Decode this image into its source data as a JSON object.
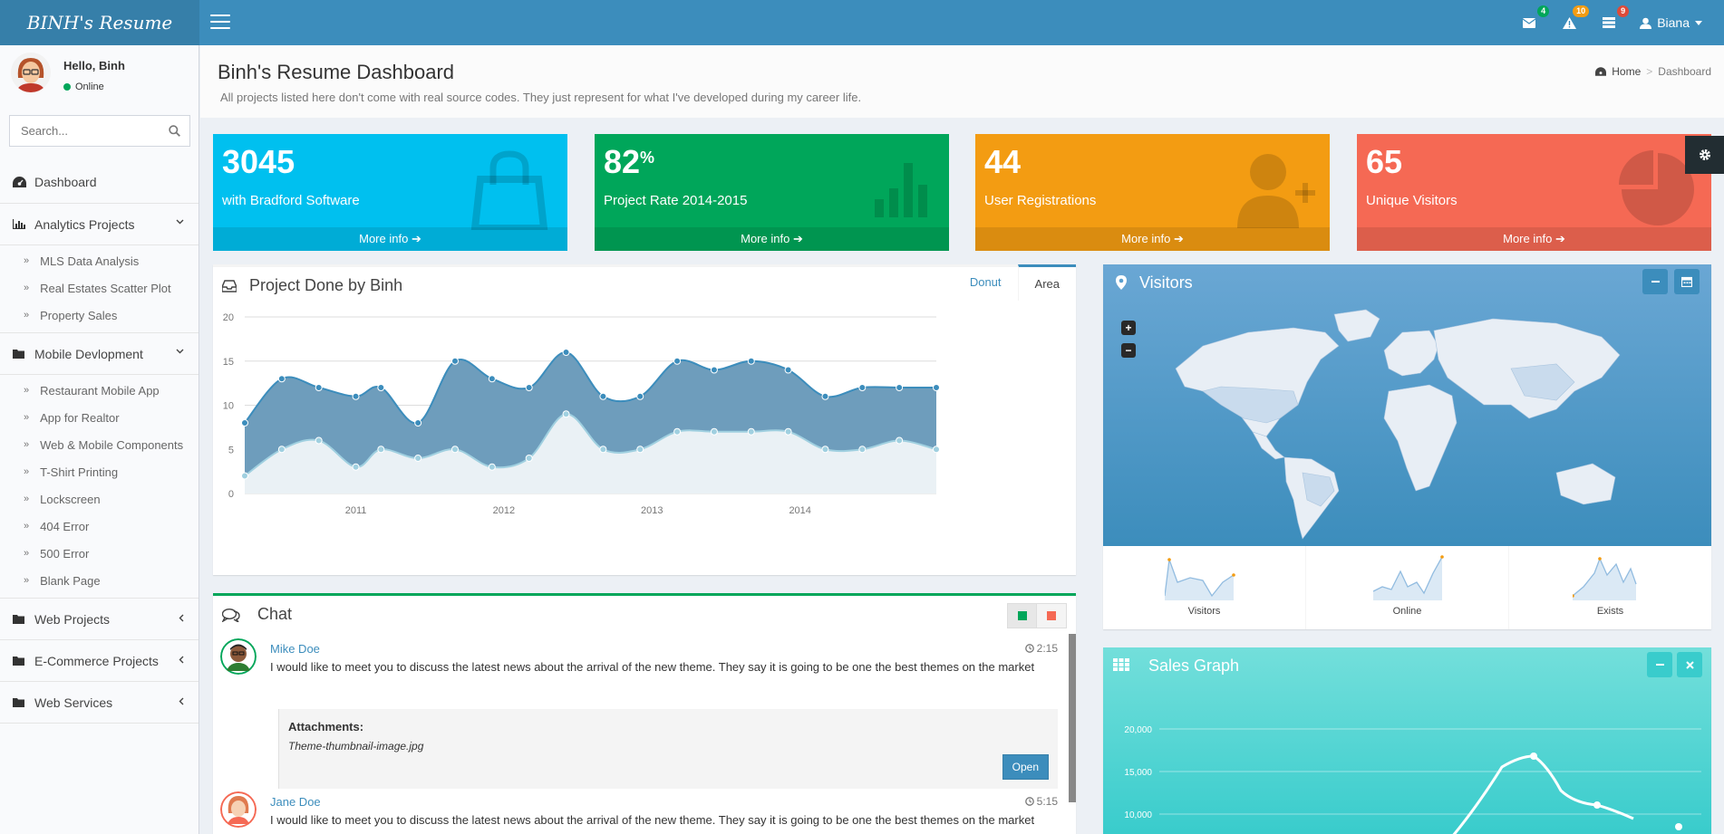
{
  "app": {
    "logo": "BINH's Resume"
  },
  "header": {
    "messages_count": "4",
    "alerts_count": "10",
    "tasks_count": "9",
    "user": "Biana",
    "colors": {
      "green": "#00a65a",
      "orange": "#f39c12",
      "red": "#dd4b39"
    }
  },
  "sidebar": {
    "greeting": "Hello, Binh",
    "status": "Online",
    "search_placeholder": "Search...",
    "dashboard": "Dashboard",
    "analytics": {
      "label": "Analytics Projects",
      "items": [
        "MLS Data Analysis",
        "Real Estates Scatter Plot",
        "Property Sales"
      ]
    },
    "mobile": {
      "label": "Mobile Devlopment",
      "items": [
        "Restaurant Mobile App",
        "App for Realtor",
        "Web & Mobile Components",
        "T-Shirt Printing",
        "Lockscreen",
        "404 Error",
        "500 Error",
        "Blank Page"
      ]
    },
    "web": "Web Projects",
    "ecommerce": "E-Commerce Projects",
    "services": "Web Services"
  },
  "content_header": {
    "title": "Binh's Resume Dashboard",
    "subtitle": "All projects listed here don't come with real source codes. They just represent for what I've developed during my career life.",
    "breadcrumb_home": "Home",
    "breadcrumb_current": "Dashboard"
  },
  "stats": [
    {
      "value": "3045",
      "suffix": "",
      "label": "with Bradford Software",
      "more": "More info",
      "color": "#00c0ef",
      "icon": "bag-icon"
    },
    {
      "value": "82",
      "suffix": "%",
      "label": "Project Rate 2014-2015",
      "more": "More info",
      "color": "#00a65a",
      "icon": "bar-chart-icon"
    },
    {
      "value": "44",
      "suffix": "",
      "label": "User Registrations",
      "more": "More info",
      "color": "#f39c12",
      "icon": "user-add-icon"
    },
    {
      "value": "65",
      "suffix": "",
      "label": "Unique Visitors",
      "more": "More info",
      "color": "#f56954",
      "icon": "pie-chart-icon"
    }
  ],
  "project_panel": {
    "title": "Project Done by Binh",
    "tab_donut": "Donut",
    "tab_area": "Area"
  },
  "chart_data": {
    "type": "area",
    "title": "Project Done by Binh",
    "ylim": [
      0,
      20
    ],
    "yticks": [
      0,
      5,
      10,
      15,
      20
    ],
    "xticks": [
      "2011",
      "2012",
      "2013",
      "2014"
    ],
    "x": [
      2010.25,
      2010.5,
      2010.75,
      2011.0,
      2011.17,
      2011.42,
      2011.67,
      2011.92,
      2012.17,
      2012.42,
      2012.67,
      2012.92,
      2013.17,
      2013.42,
      2013.67,
      2013.92,
      2014.17,
      2014.42,
      2014.67,
      2014.92
    ],
    "series": [
      {
        "values": [
          8,
          13,
          12,
          11,
          12,
          8,
          15,
          13,
          12,
          16,
          11,
          11,
          15,
          14,
          15,
          14,
          11,
          12,
          12,
          12
        ]
      },
      {
        "values": [
          2,
          5,
          6,
          3,
          5,
          4,
          5,
          3,
          4,
          9,
          5,
          5,
          7,
          7,
          7,
          7,
          5,
          5,
          6,
          5
        ]
      }
    ],
    "grid": true
  },
  "visitors": {
    "title": "Visitors",
    "zoom_in": "+",
    "zoom_out": "−",
    "spark_labels": [
      "Visitors",
      "Online",
      "Exists"
    ]
  },
  "chat": {
    "title": "Chat",
    "messages": [
      {
        "name": "Mike Doe",
        "time": "2:15",
        "text": "I would like to meet you to discuss the latest news about the arrival of the new theme. They say it is going to be one the best themes on the market",
        "attach_title": "Attachments:",
        "attach_file": "Theme-thumbnail-image.jpg",
        "open": "Open"
      },
      {
        "name": "Jane Doe",
        "time": "5:15",
        "text": "I would like to meet you to discuss the latest news about the arrival of the new theme. They say it is going to be one the best themes on the market"
      }
    ]
  },
  "sales": {
    "title": "Sales Graph",
    "yticks": [
      "20,000",
      "15,000",
      "10,000"
    ]
  }
}
